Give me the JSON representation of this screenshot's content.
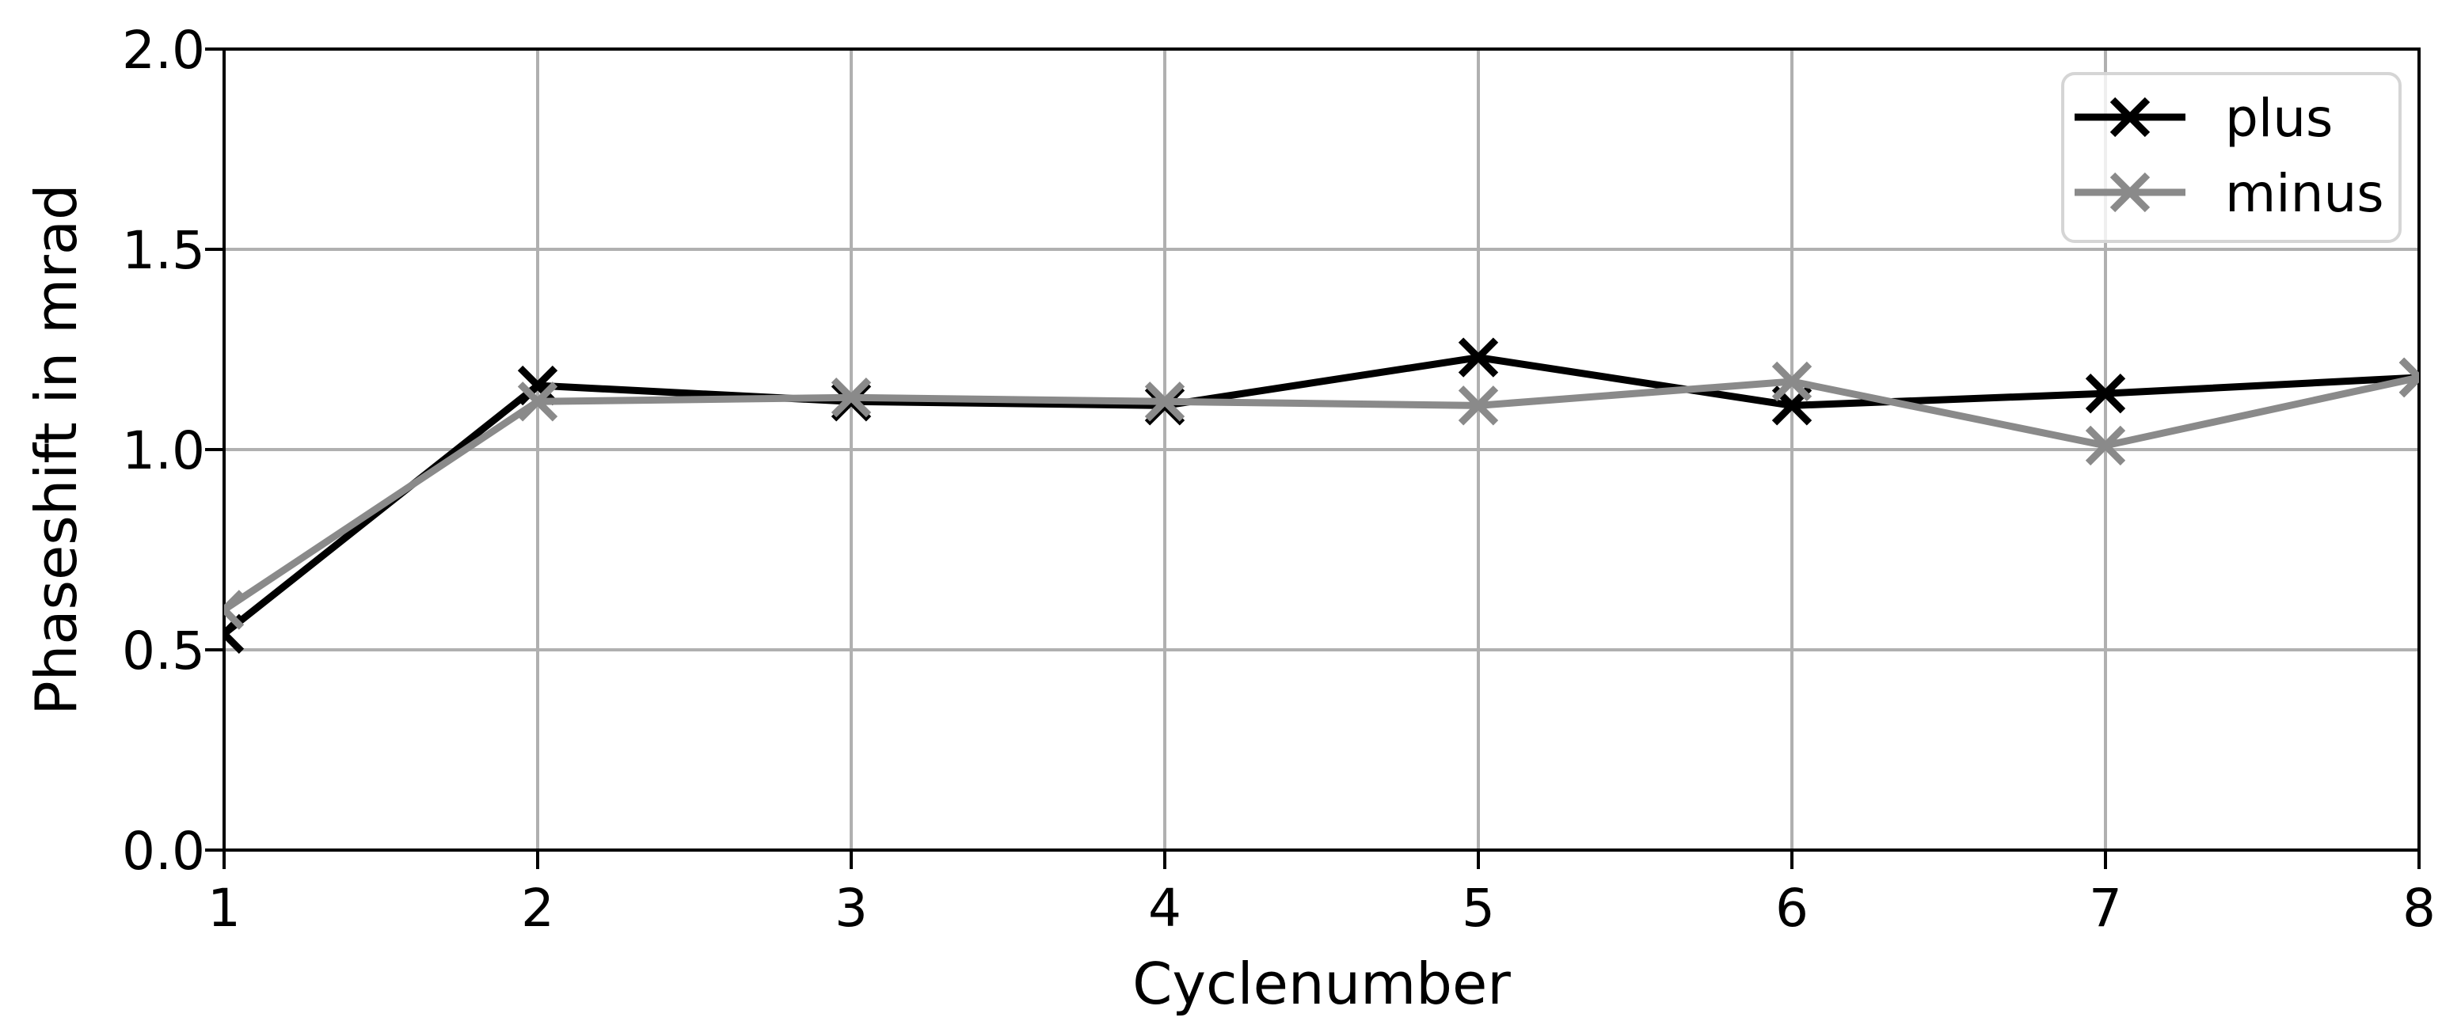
{
  "figure": {
    "background": "#ffffff",
    "grid_color": "#b0b0b0",
    "spine_color": "#000000",
    "tick_color": "#000000",
    "text_color": "#000000",
    "legend_border_color": "#d5d5d5",
    "legend_fill": "#ffffff"
  },
  "chart_data": {
    "type": "line",
    "xlabel": "Cyclenumber",
    "ylabel": "Phaseshift in mrad",
    "x": [
      1,
      2,
      3,
      4,
      5,
      6,
      7,
      8
    ],
    "series": [
      {
        "name": "plus",
        "color": "#000000",
        "marker": "x",
        "values": [
          0.54,
          1.16,
          1.12,
          1.11,
          1.23,
          1.11,
          1.14,
          1.18
        ]
      },
      {
        "name": "minus",
        "color": "#8a8a8a",
        "marker": "x",
        "values": [
          0.6,
          1.12,
          1.13,
          1.12,
          1.11,
          1.17,
          1.01,
          1.18
        ]
      }
    ],
    "xlim": [
      1,
      8
    ],
    "ylim": [
      0.0,
      2.0
    ],
    "xticks": [
      1,
      2,
      3,
      4,
      5,
      6,
      7,
      8
    ],
    "xtick_labels": [
      "1",
      "2",
      "3",
      "4",
      "5",
      "6",
      "7",
      "8"
    ],
    "yticks": [
      0.0,
      0.5,
      1.0,
      1.5,
      2.0
    ],
    "ytick_labels": [
      "0.0",
      "0.5",
      "1.0",
      "1.5",
      "2.0"
    ],
    "grid": true,
    "legend": {
      "position": "upper right",
      "entries": [
        "plus",
        "minus"
      ]
    }
  }
}
